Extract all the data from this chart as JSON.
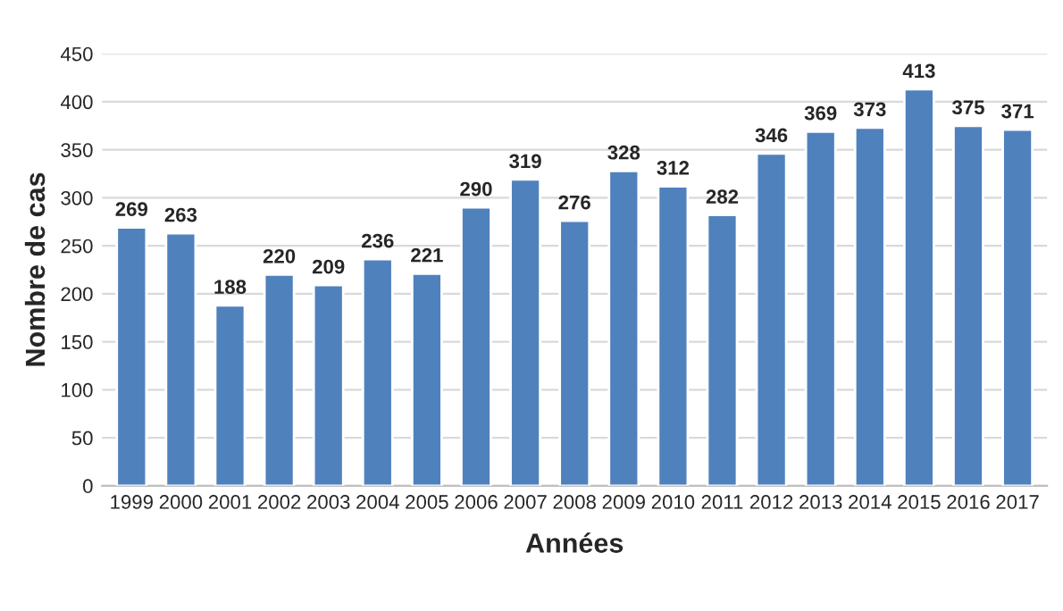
{
  "chart_data": {
    "type": "bar",
    "xlabel": "Années",
    "ylabel": "Nombre de cas",
    "categories": [
      "1999",
      "2000",
      "2001",
      "2002",
      "2003",
      "2004",
      "2005",
      "2006",
      "2007",
      "2008",
      "2009",
      "2010",
      "2011",
      "2012",
      "2013",
      "2014",
      "2015",
      "2016",
      "2017"
    ],
    "values": [
      269,
      263,
      188,
      220,
      209,
      236,
      221,
      290,
      319,
      276,
      328,
      312,
      282,
      346,
      369,
      373,
      413,
      375,
      371
    ],
    "color": "#4f81bd",
    "ylim": [
      0,
      450
    ],
    "yticks": [
      0,
      50,
      100,
      150,
      200,
      250,
      300,
      350,
      400,
      450
    ],
    "grid": "y",
    "data_labels": true
  }
}
